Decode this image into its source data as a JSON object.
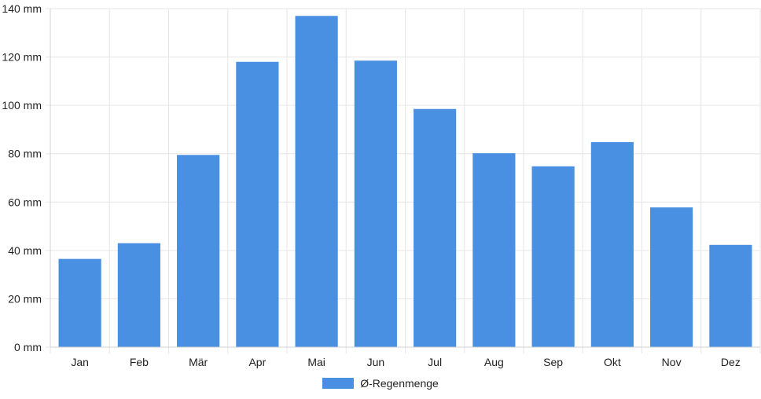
{
  "chart_data": {
    "type": "bar",
    "categories": [
      "Jan",
      "Feb",
      "Mär",
      "Apr",
      "Mai",
      "Jun",
      "Jul",
      "Aug",
      "Sep",
      "Okt",
      "Nov",
      "Dez"
    ],
    "series": [
      {
        "name": "Ø-Regenmenge",
        "values": [
          36.5,
          43,
          79.5,
          118,
          137,
          118.5,
          98.5,
          80.2,
          74.8,
          84.8,
          57.8,
          42.3
        ]
      }
    ],
    "ylim": [
      0,
      140
    ],
    "yticks": [
      0,
      20,
      40,
      60,
      80,
      100,
      120,
      140
    ],
    "y_unit": "mm",
    "grid": true,
    "legend_position": "bottom",
    "colors": {
      "bar": "#4a90e2"
    }
  }
}
